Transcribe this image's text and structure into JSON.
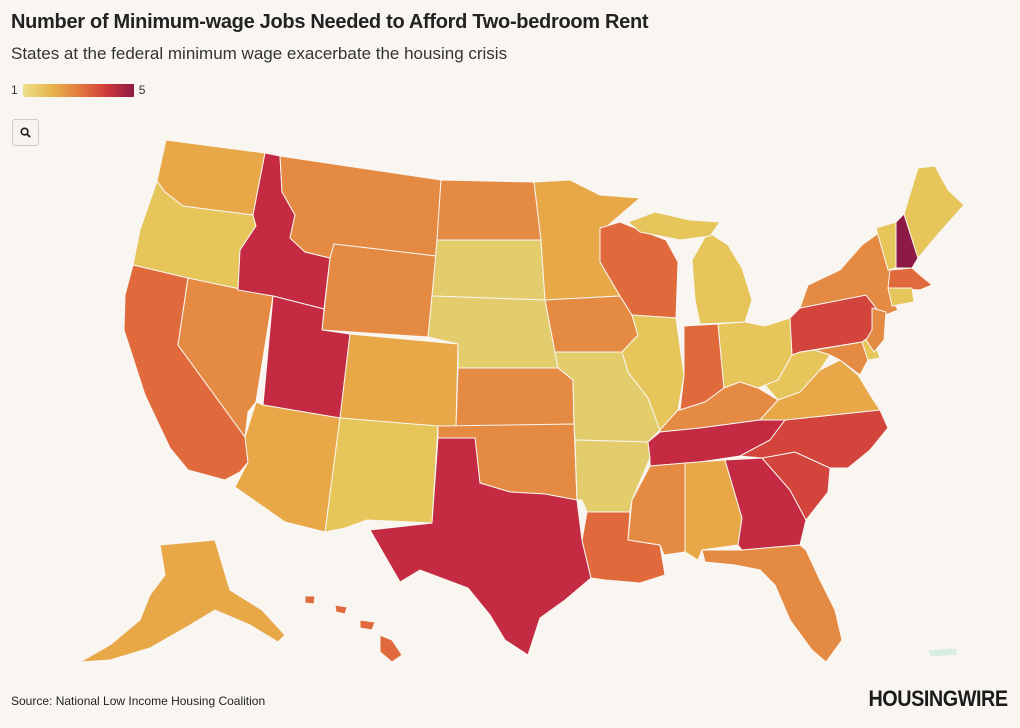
{
  "title": "Number of Minimum-wage Jobs Needed to Afford Two-bedroom Rent",
  "subtitle": "States at the federal minimum wage exacerbate the housing crisis",
  "legend": {
    "min_label": "1",
    "max_label": "5"
  },
  "source": "Source: National Low Income Housing Coalition",
  "brand": "HOUSINGWIRE",
  "icons": {
    "zoom": "search-icon"
  },
  "colors": {
    "background": "#f9f6f2",
    "light_yellow": "#e2cc6c",
    "yellow": "#e6c55a",
    "orange_light": "#e8a848",
    "orange": "#e58a42",
    "orange_red": "#e06a3c",
    "red": "#d2443c",
    "crimson": "#c42a42",
    "dark": "#8d1a44"
  },
  "map_states": {
    "WA": "orange_light",
    "OR": "yellow",
    "CA": "orange_red",
    "NV": "orange",
    "ID": "crimson",
    "MT": "orange",
    "WY": "orange",
    "UT": "crimson",
    "AZ": "orange_light",
    "CO": "orange_light",
    "NM": "yellow",
    "ND": "orange",
    "SD": "light_yellow",
    "NE": "light_yellow",
    "KS": "orange",
    "OK": "orange",
    "TX": "crimson",
    "MN": "orange_light",
    "IA": "orange",
    "MO": "light_yellow",
    "AR": "light_yellow",
    "LA": "orange_red",
    "WI": "orange_red",
    "IL": "yellow",
    "MI": "yellow",
    "IN": "orange_red",
    "OH": "yellow",
    "KY": "orange",
    "TN": "crimson",
    "MS": "orange",
    "AL": "orange_light",
    "GA": "crimson",
    "FL": "orange",
    "SC": "red",
    "NC": "red",
    "VA": "orange_light",
    "WV": "yellow",
    "PA": "red",
    "NY": "orange",
    "VT": "yellow",
    "NH": "dark",
    "ME": "yellow",
    "MA": "orange_red",
    "CT": "yellow",
    "NJ": "orange",
    "DE": "yellow",
    "MD": "orange",
    "AK": "orange_light",
    "HI": "orange_red"
  }
}
